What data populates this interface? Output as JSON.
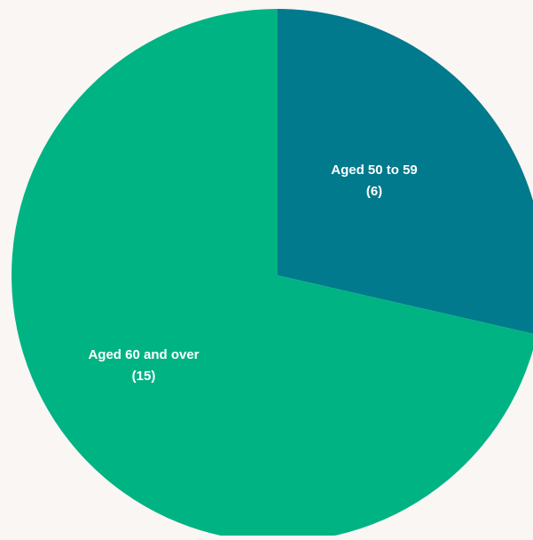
{
  "chart_data": {
    "type": "pie",
    "title": "",
    "slices": [
      {
        "label": "Aged 50 to 59",
        "value_label": "(6)",
        "value": 6,
        "color": "#007a8c"
      },
      {
        "label": "Aged 60 and over",
        "value_label": "(15)",
        "value": 15,
        "color": "#00b383"
      }
    ],
    "start": "12 o'clock",
    "direction": "clockwise",
    "legend": "none"
  },
  "background_color": "#f9f6f4"
}
